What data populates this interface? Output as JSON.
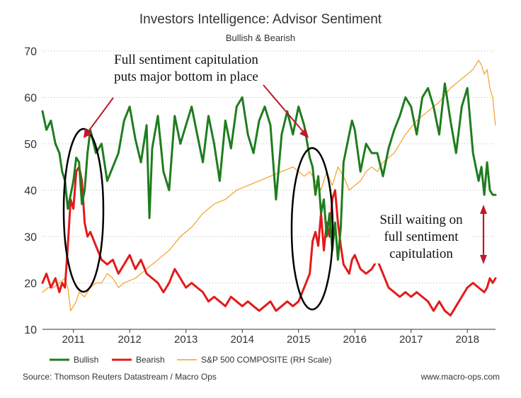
{
  "chart_data": {
    "type": "line",
    "title": "Investors Intelligence: Advisor Sentiment",
    "subtitle": "Bullish & Bearish",
    "xlabel": "",
    "ylabel": "",
    "ylim": [
      10,
      70
    ],
    "xlim": [
      2010.55,
      2018.6
    ],
    "yticks": [
      10,
      20,
      30,
      40,
      50,
      60,
      70
    ],
    "xticks": [
      {
        "label": "2011",
        "value": 2011.1
      },
      {
        "label": "2012",
        "value": 2012.1
      },
      {
        "label": "2013",
        "value": 2013.1
      },
      {
        "label": "2014",
        "value": 2014.1
      },
      {
        "label": "2015",
        "value": 2015.1
      },
      {
        "label": "2016",
        "value": 2016.1
      },
      {
        "label": "2017",
        "value": 2017.1
      },
      {
        "label": "2018",
        "value": 2018.1
      }
    ],
    "grid": "horizontal dotted",
    "series": [
      {
        "name": "Bullish",
        "color": "#1e7d1e",
        "x": [
          2010.55,
          2010.62,
          2010.7,
          2010.78,
          2010.85,
          2010.9,
          2010.95,
          2011.0,
          2011.05,
          2011.1,
          2011.15,
          2011.2,
          2011.25,
          2011.3,
          2011.35,
          2011.4,
          2011.5,
          2011.6,
          2011.7,
          2011.8,
          2011.9,
          2012.0,
          2012.1,
          2012.2,
          2012.3,
          2012.4,
          2012.45,
          2012.5,
          2012.6,
          2012.7,
          2012.8,
          2012.9,
          2013.0,
          2013.1,
          2013.2,
          2013.3,
          2013.4,
          2013.5,
          2013.6,
          2013.7,
          2013.8,
          2013.9,
          2014.0,
          2014.1,
          2014.2,
          2014.3,
          2014.4,
          2014.5,
          2014.6,
          2014.7,
          2014.8,
          2014.9,
          2015.0,
          2015.1,
          2015.2,
          2015.3,
          2015.35,
          2015.4,
          2015.45,
          2015.5,
          2015.55,
          2015.6,
          2015.65,
          2015.7,
          2015.75,
          2015.8,
          2015.85,
          2015.9,
          2016.0,
          2016.05,
          2016.1,
          2016.2,
          2016.3,
          2016.4,
          2016.5,
          2016.6,
          2016.7,
          2016.8,
          2016.9,
          2017.0,
          2017.1,
          2017.2,
          2017.3,
          2017.4,
          2017.5,
          2017.6,
          2017.7,
          2017.8,
          2017.9,
          2018.0,
          2018.1,
          2018.15,
          2018.2,
          2018.3,
          2018.35,
          2018.4,
          2018.45,
          2018.5,
          2018.55,
          2018.6
        ],
        "values": [
          57,
          53,
          55,
          50,
          48,
          44,
          42,
          36,
          39,
          42,
          47,
          46,
          37,
          40,
          48,
          53,
          48,
          50,
          42,
          45,
          48,
          55,
          58,
          51,
          46,
          54,
          34,
          49,
          56,
          44,
          40,
          56,
          50,
          54,
          58,
          52,
          46,
          56,
          50,
          42,
          55,
          49,
          58,
          60,
          52,
          48,
          55,
          58,
          54,
          38,
          52,
          57,
          52,
          58,
          54,
          47,
          45,
          39,
          43,
          35,
          38,
          30,
          35,
          27,
          33,
          25,
          32,
          46,
          52,
          55,
          53,
          44,
          50,
          48,
          48,
          43,
          49,
          53,
          56,
          60,
          58,
          52,
          60,
          62,
          58,
          52,
          63,
          55,
          48,
          58,
          62,
          55,
          48,
          42,
          45,
          39,
          46,
          40,
          39,
          39
        ]
      },
      {
        "name": "Bearish",
        "color": "#e41a1a",
        "x": [
          2010.55,
          2010.62,
          2010.7,
          2010.78,
          2010.85,
          2010.9,
          2010.95,
          2011.0,
          2011.05,
          2011.1,
          2011.15,
          2011.2,
          2011.25,
          2011.3,
          2011.35,
          2011.4,
          2011.5,
          2011.6,
          2011.7,
          2011.8,
          2011.9,
          2012.0,
          2012.1,
          2012.2,
          2012.3,
          2012.4,
          2012.5,
          2012.6,
          2012.7,
          2012.8,
          2012.9,
          2013.0,
          2013.1,
          2013.2,
          2013.3,
          2013.4,
          2013.5,
          2013.6,
          2013.7,
          2013.8,
          2013.9,
          2014.0,
          2014.1,
          2014.2,
          2014.3,
          2014.4,
          2014.5,
          2014.6,
          2014.7,
          2014.8,
          2014.9,
          2015.0,
          2015.1,
          2015.2,
          2015.3,
          2015.35,
          2015.4,
          2015.45,
          2015.5,
          2015.55,
          2015.6,
          2015.65,
          2015.7,
          2015.75,
          2015.8,
          2015.85,
          2015.9,
          2016.0,
          2016.05,
          2016.1,
          2016.2,
          2016.3,
          2016.4,
          2016.5,
          2016.6,
          2016.7,
          2016.8,
          2016.9,
          2017.0,
          2017.1,
          2017.2,
          2017.3,
          2017.4,
          2017.5,
          2017.6,
          2017.7,
          2017.8,
          2017.9,
          2018.0,
          2018.1,
          2018.2,
          2018.3,
          2018.4,
          2018.45,
          2018.5,
          2018.55,
          2018.6
        ],
        "values": [
          20,
          22,
          19,
          21,
          18,
          20,
          19,
          28,
          38,
          36,
          44,
          45,
          42,
          33,
          30,
          31,
          28,
          25,
          24,
          25,
          22,
          24,
          26,
          23,
          25,
          22,
          21,
          20,
          18,
          20,
          23,
          21,
          19,
          20,
          19,
          18,
          16,
          17,
          16,
          15,
          17,
          16,
          15,
          16,
          15,
          14,
          15,
          16,
          14,
          15,
          16,
          15,
          16,
          19,
          22,
          29,
          31,
          28,
          35,
          27,
          33,
          30,
          38,
          40,
          33,
          28,
          24,
          22,
          25,
          26,
          23,
          22,
          23,
          25,
          22,
          19,
          18,
          17,
          18,
          17,
          18,
          17,
          16,
          14,
          16,
          14,
          13,
          15,
          17,
          19,
          20,
          19,
          18,
          19,
          21,
          20,
          21
        ]
      },
      {
        "name": "S&P 500 COMPOSITE (RH Scale)",
        "color": "#f5a024",
        "x": [
          2010.55,
          2010.65,
          2010.75,
          2010.85,
          2010.95,
          2011.0,
          2011.05,
          2011.1,
          2011.15,
          2011.2,
          2011.3,
          2011.4,
          2011.5,
          2011.6,
          2011.7,
          2011.8,
          2011.9,
          2012.0,
          2012.2,
          2012.4,
          2012.6,
          2012.8,
          2013.0,
          2013.2,
          2013.4,
          2013.6,
          2013.8,
          2014.0,
          2014.2,
          2014.4,
          2014.6,
          2014.8,
          2015.0,
          2015.1,
          2015.2,
          2015.3,
          2015.4,
          2015.5,
          2015.6,
          2015.7,
          2015.8,
          2015.9,
          2016.0,
          2016.1,
          2016.2,
          2016.3,
          2016.4,
          2016.5,
          2016.6,
          2016.7,
          2016.8,
          2016.9,
          2017.0,
          2017.2,
          2017.4,
          2017.6,
          2017.8,
          2018.0,
          2018.1,
          2018.2,
          2018.3,
          2018.35,
          2018.4,
          2018.45,
          2018.5,
          2018.55,
          2018.6
        ],
        "values": [
          18,
          19,
          19,
          20,
          21,
          19,
          14,
          15,
          16,
          18,
          17,
          19,
          20,
          20,
          22,
          21,
          19,
          20,
          21,
          23,
          25,
          27,
          30,
          32,
          35,
          37,
          38,
          40,
          41,
          42,
          43,
          44,
          45,
          44,
          43,
          44,
          42,
          40,
          44,
          41,
          45,
          43,
          40,
          41,
          42,
          44,
          45,
          44,
          46,
          47,
          48,
          50,
          52,
          55,
          57,
          59,
          62,
          64,
          65,
          66,
          68,
          67,
          65,
          66,
          62,
          60,
          54
        ]
      }
    ],
    "legend_position": "bottom-left",
    "annotations": [
      {
        "id": "top",
        "lines": [
          "Full sentiment capitulation",
          "puts major bottom in place"
        ]
      },
      {
        "id": "right",
        "lines": [
          "Still waiting on",
          "full sentiment",
          "capitulation"
        ]
      }
    ],
    "footer_source": "Source: Thomson Reuters Datastream / Macro Ops",
    "footer_site": "www.macro-ops.com"
  }
}
